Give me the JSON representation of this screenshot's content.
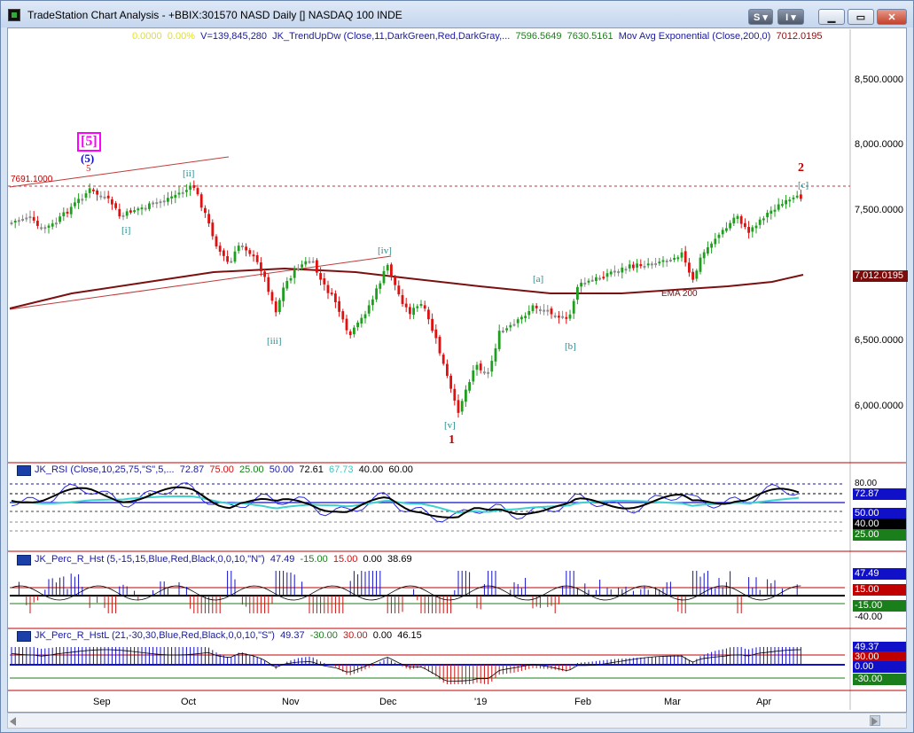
{
  "window": {
    "title": "TradeStation Chart Analysis - +BBIX:301570 NASD Daily [] NASDAQ 100 INDE",
    "buttons": {
      "s_label": "S ▾",
      "i_label": "I ▾"
    }
  },
  "price_pane": {
    "legend": {
      "change": "0.0000",
      "change_pct": "0.00%",
      "volume": "V=139,845,280",
      "indicator": "JK_TrendUpDw (Close,11,DarkGreen,Red,DarkGray,...",
      "val1": "7596.5649",
      "val2": "7630.5161",
      "ma_name": "Mov Avg Exponential (Close,200,0)",
      "ma_value": "7012.0195"
    },
    "price_axis": [
      "8,500.0000",
      "8,000.0000",
      "7,500.0000",
      "7,000.0000",
      "6,500.0000",
      "6,000.0000"
    ],
    "current_ma_tag": "7,012.0195",
    "ref_level_label": "7691.1000",
    "ema_label": "EMA 200",
    "wave_labels": {
      "big5": "[5]",
      "circle5": "(5)",
      "small5": "5",
      "ii": "[ii]",
      "i": "[i]",
      "iii": "[iii]",
      "iv": "[iv]",
      "v": "[v]",
      "one": "1",
      "a": "[a]",
      "b": "[b]",
      "c": "[c]",
      "two": "2"
    }
  },
  "rsi_pane": {
    "name": "JK_RSI (Close,10,25,75,\"S\",5,...",
    "v1": "72.87",
    "v2": "75.00",
    "v3": "25.00",
    "v4": "50.00",
    "v5": "72.61",
    "v6": "67.73",
    "v7": "40.00",
    "v8": "60.00",
    "tags": [
      "72.87",
      "50.00",
      "40.00",
      "25.00"
    ],
    "axis_top": "80.00"
  },
  "perc_pane": {
    "name": "JK_Perc_R_Hst (5,-15,15,Blue,Red,Black,0,0,10,\"N\")",
    "v1": "47.49",
    "v2": "-15.00",
    "v3": "15.00",
    "v4": "0.00",
    "v5": "38.69",
    "tags": [
      "47.49",
      "15.00",
      "-15.00",
      "-40.00"
    ]
  },
  "percl_pane": {
    "name": "JK_Perc_R_HstL (21,-30,30,Blue,Red,Black,0,0,10,\"S\")",
    "v1": "49.37",
    "v2": "-30.00",
    "v3": "30.00",
    "v4": "0.00",
    "v5": "46.15",
    "tags": [
      "49.37",
      "30.00",
      "0.00",
      "-30.00"
    ]
  },
  "time_axis": [
    "Sep",
    "Oct",
    "Nov",
    "Dec",
    "'19",
    "Feb",
    "Mar",
    "Apr"
  ],
  "colors": {
    "up": "#1f9e1f",
    "down": "#e01010",
    "neutral": "#8a8a8a",
    "ema": "#7a1010",
    "accent_magenta": "#ff00ff",
    "wave_teal": "#2a8d8d",
    "tag_red": "#c00000",
    "tag_blue": "#1010c8",
    "tag_green": "#1a7f1a"
  }
}
